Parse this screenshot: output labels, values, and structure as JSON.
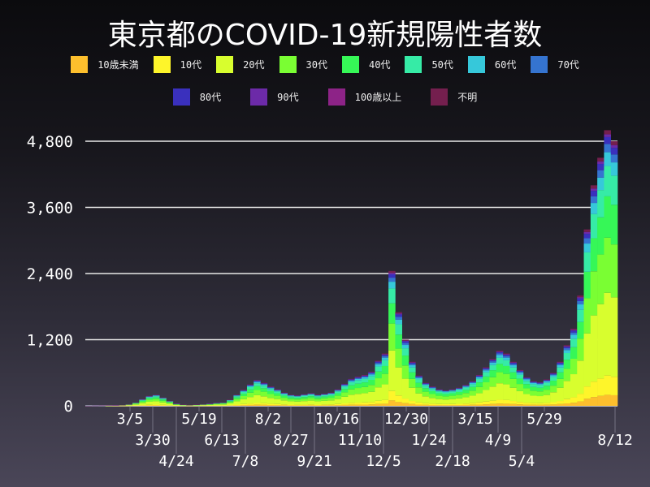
{
  "chart_data": {
    "type": "bar",
    "stacked": true,
    "title": "東京都のCOVID-19新規陽性者数",
    "xlabel": "",
    "ylabel": "",
    "ylim": [
      0,
      5000
    ],
    "yticks": [
      0,
      1200,
      2400,
      3600,
      4800
    ],
    "ytick_labels": [
      "0",
      "1,200",
      "2,400",
      "3,600",
      "4,800"
    ],
    "xtick_labels": [
      "3/5",
      "3/30",
      "4/24",
      "5/19",
      "6/13",
      "7/8",
      "8/2",
      "8/27",
      "9/21",
      "10/16",
      "11/10",
      "12/5",
      "12/30",
      "1/24",
      "2/18",
      "3/15",
      "4/9",
      "5/4",
      "5/29",
      "8/12"
    ],
    "grid": "horizontal",
    "legend_position": "top",
    "series": [
      {
        "name": "10歳未満",
        "color": "#fdbf2d",
        "share": 0.04
      },
      {
        "name": "10代",
        "color": "#fef52a",
        "share": 0.07
      },
      {
        "name": "20代",
        "color": "#d8fe2e",
        "share": 0.3
      },
      {
        "name": "30代",
        "color": "#7afe33",
        "share": 0.2
      },
      {
        "name": "40代",
        "color": "#36f757",
        "share": 0.15
      },
      {
        "name": "50代",
        "color": "#36eba6",
        "share": 0.11
      },
      {
        "name": "60代",
        "color": "#36c8da",
        "share": 0.05
      },
      {
        "name": "70代",
        "color": "#3574d0",
        "share": 0.03
      },
      {
        "name": "80代",
        "color": "#3a30bd",
        "share": 0.025
      },
      {
        "name": "90代",
        "color": "#6c2aa8",
        "share": 0.01
      },
      {
        "name": "100歳以上",
        "color": "#8d2387",
        "share": 0.0005
      },
      {
        "name": "不明",
        "color": "#741f4e",
        "share": 0.0145
      }
    ],
    "weekly_totals": [
      1,
      2,
      3,
      5,
      8,
      15,
      30,
      60,
      120,
      180,
      200,
      150,
      90,
      40,
      20,
      15,
      20,
      30,
      40,
      55,
      60,
      110,
      200,
      290,
      390,
      470,
      420,
      350,
      300,
      240,
      200,
      190,
      210,
      230,
      200,
      220,
      240,
      300,
      400,
      490,
      530,
      560,
      620,
      820,
      950,
      2447,
      1700,
      1200,
      800,
      550,
      420,
      350,
      300,
      280,
      300,
      330,
      380,
      450,
      560,
      700,
      850,
      1000,
      950,
      800,
      650,
      520,
      450,
      430,
      480,
      600,
      800,
      1100,
      1400,
      2000,
      3200,
      4000,
      4500,
      5000,
      4800
    ]
  }
}
